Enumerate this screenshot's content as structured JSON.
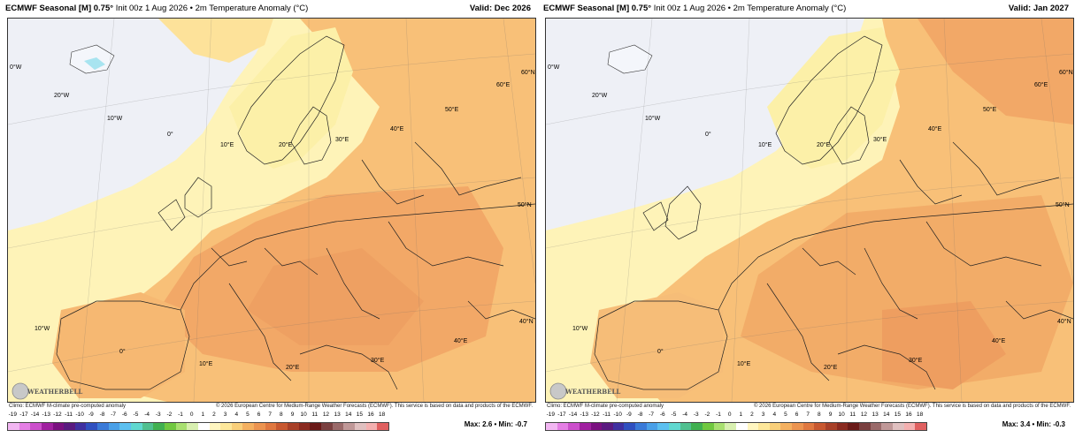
{
  "panels": [
    {
      "model": "ECMWF Seasonal [M] 0.75°",
      "subtitle": "Init 00z 1 Aug 2026 • 2m Temperature Anomaly (°C)",
      "valid": "Valid: Dec 2026",
      "max_min": "Max: 2.6 • Min: -0.7",
      "credit_left": "Climo: ECMWF M-climate pre-computed anomaly",
      "credit_right": "© 2026 European Centre for Medium-Range Weather Forecasts (ECMWF). This service is based on data and products of the ECMWF.",
      "logo_text": "WEATHERBELL",
      "labels": {
        "lon_0": "0°W",
        "lon_20w": "20°W",
        "lon_10w_top": "10°W",
        "lon_0_mid": "0°",
        "lon_10e": "10°E",
        "lon_20e": "20°E",
        "lon_30e": "30°E",
        "lon_40e": "40°E",
        "lon_50e": "50°E",
        "lon_60e": "60°E",
        "lat_60n": "60°N",
        "lat_50n": "50°N",
        "lat_40n": "40°N",
        "lon_10w_bot": "10°W",
        "lon_0_bot": "0°",
        "lon_10e_bot": "10°E",
        "lon_20e_bot": "20°E",
        "lon_30e_bot": "30°E",
        "lon_40e_bot": "40°E"
      }
    },
    {
      "model": "ECMWF Seasonal [M] 0.75°",
      "subtitle": "Init 00z 1 Aug 2026 • 2m Temperature Anomaly (°C)",
      "valid": "Valid: Jan 2027",
      "max_min": "Max: 3.4 • Min: -0.3",
      "credit_left": "Climo: ECMWF M-climate pre-computed anomaly",
      "credit_right": "© 2026 European Centre for Medium-Range Weather Forecasts (ECMWF). This service is based on data and products of the ECMWF.",
      "logo_text": "WEATHERBELL",
      "labels": {
        "lon_0": "0°W",
        "lon_20w": "20°W",
        "lon_10w_top": "10°W",
        "lon_0_mid": "0°",
        "lon_10e": "10°E",
        "lon_20e": "20°E",
        "lon_30e": "30°E",
        "lon_40e": "40°E",
        "lon_50e": "50°E",
        "lon_60e": "60°E",
        "lat_60n": "60°N",
        "lat_50n": "50°N",
        "lat_40n": "40°N",
        "lon_10w_bot": "10°W",
        "lon_0_bot": "0°",
        "lon_10e_bot": "10°E",
        "lon_20e_bot": "20°E",
        "lon_30e_bot": "30°E",
        "lon_40e_bot": "40°E"
      }
    }
  ],
  "colorbar": {
    "ticks": [
      "-19",
      "-17",
      "-14",
      "-13",
      "-12",
      "-11",
      "-10",
      "-9",
      "-8",
      "-7",
      "-6",
      "-5",
      "-4",
      "-3",
      "-2",
      "-1",
      "0",
      "1",
      "2",
      "3",
      "4",
      "5",
      "6",
      "7",
      "8",
      "9",
      "10",
      "11",
      "12",
      "13",
      "14",
      "15",
      "16",
      "18"
    ],
    "colors": [
      "#f2b6f2",
      "#e57fe5",
      "#cc4fcc",
      "#a020a0",
      "#7a1080",
      "#5a1a80",
      "#4030a0",
      "#3050c0",
      "#3a7ad8",
      "#4aa0e8",
      "#5cc0f0",
      "#60d8d0",
      "#50c090",
      "#40b050",
      "#70c840",
      "#a8e070",
      "#d8f0b0",
      "#ffffff",
      "#fff6c0",
      "#fde79a",
      "#f9cf7a",
      "#f4b060",
      "#ec9450",
      "#e07840",
      "#c85830",
      "#a84028",
      "#8a2a20",
      "#6a1a18",
      "#7a4040",
      "#9a6a6a",
      "#c09898",
      "#e0c0c0",
      "#f4b0b0",
      "#e06060"
    ]
  }
}
